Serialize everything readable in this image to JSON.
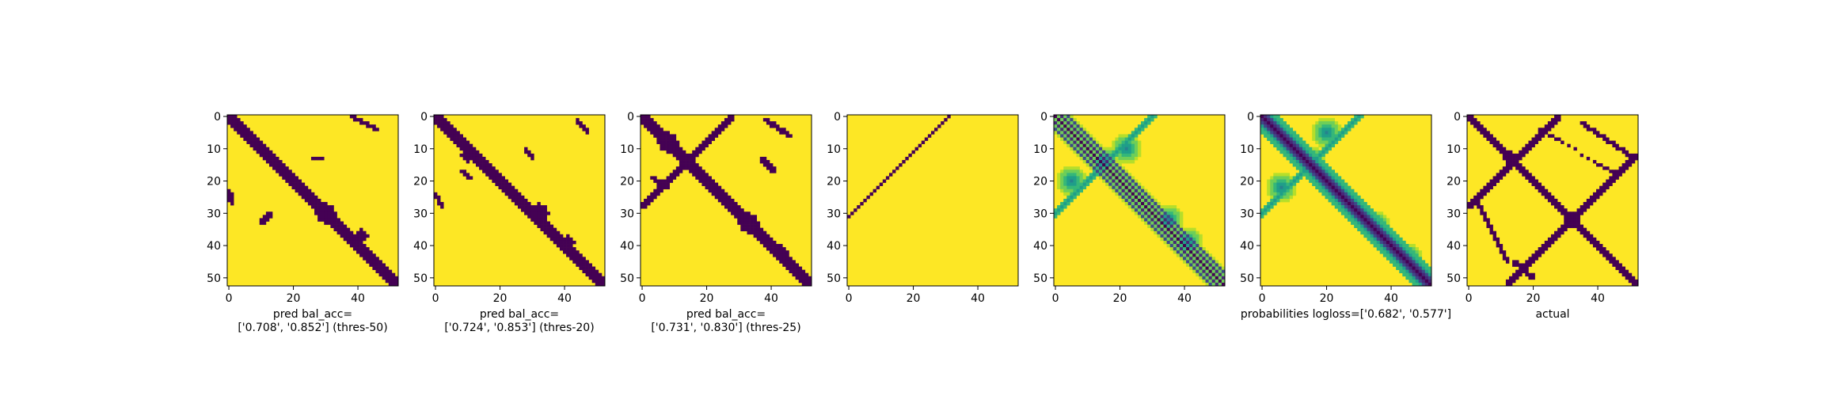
{
  "figure": {
    "colors": {
      "low": "#440154",
      "high": "#fde725",
      "viridis": [
        "#440154",
        "#482878",
        "#3e4989",
        "#31688e",
        "#26828e",
        "#1f9e89",
        "#35b779",
        "#6ece58",
        "#b5de2b",
        "#fde725"
      ]
    },
    "axis": {
      "x_ticks": [
        0,
        20,
        40
      ],
      "y_ticks": [
        0,
        10,
        20,
        30,
        40,
        50
      ],
      "size": 53
    }
  },
  "chart_data": [
    {
      "type": "heatmap",
      "title": "",
      "xlabel": "pred bal_acc=\n['0.708', '0.852'] (thres-50)",
      "ylabel": "",
      "xlim": [
        0,
        52
      ],
      "ylim": [
        52,
        0
      ],
      "values": "binary 53x53 contact map: thick dark band along main diagonal (half-width ~2, widening to a blob near 28-33), short anti-diagonal streak at rows 3-6 cols 48-52, small specks near (1,37), (13,27), (23-28,0-1), (31,12)",
      "band_width": 2,
      "blobs": [
        [
          30,
          30,
          3
        ],
        [
          37,
          41,
          2
        ]
      ],
      "segments": [
        [
          0,
          38,
          4,
          46,
          1
        ],
        [
          13,
          26,
          13,
          29,
          1
        ],
        [
          23,
          0,
          27,
          1,
          1
        ],
        [
          30,
          13,
          33,
          10,
          1
        ]
      ]
    },
    {
      "type": "heatmap",
      "title": "",
      "xlabel": "pred bal_acc=\n['0.724', '0.853'] (thres-20)",
      "ylabel": "",
      "xlim": [
        0,
        52
      ],
      "ylim": [
        52,
        0
      ],
      "values": "binary 53x53 contact map: thick dark main-diagonal band with blob near 30-34, anti-diagonal spur near rows 14-18 cols 20-27, small patches near (3,45), (11,28), (26-28,1)",
      "band_width": 2,
      "blobs": [
        [
          30,
          32,
          3
        ],
        [
          39,
          41,
          2
        ],
        [
          12,
          10,
          2
        ]
      ],
      "segments": [
        [
          1,
          44,
          5,
          47,
          1
        ],
        [
          10,
          28,
          13,
          30,
          1
        ],
        [
          24,
          0,
          28,
          2,
          1
        ],
        [
          17,
          8,
          19,
          11,
          1
        ]
      ]
    },
    {
      "type": "heatmap",
      "title": "",
      "xlabel": "pred bal_acc=\n['0.731', '0.830'] (thres-25)",
      "ylabel": "",
      "xlim": [
        0,
        52
      ],
      "ylim": [
        52,
        0
      ],
      "values": "binary 53x53 contact map: thick dark main-diagonal band, prominent anti-diagonal from (0,28) to (28,0) crossing near (13,13), cluster near (2-10,5-12), blob near 32-36, scattered dots",
      "band_width": 2,
      "blobs": [
        [
          8,
          8,
          3
        ],
        [
          33,
          33,
          3
        ],
        [
          14,
          14,
          2
        ],
        [
          42,
          43,
          2
        ]
      ],
      "segments": [
        [
          0,
          28,
          28,
          0,
          1
        ],
        [
          1,
          38,
          6,
          46,
          1
        ],
        [
          19,
          3,
          22,
          8,
          1
        ],
        [
          13,
          37,
          17,
          41,
          1
        ]
      ]
    },
    {
      "type": "heatmap",
      "title": "",
      "xlabel": "",
      "ylabel": "",
      "xlim": [
        0,
        52
      ],
      "ylim": [
        52,
        0
      ],
      "values": "binary 53x53 map: nearly all yellow, single thin dotted anti-diagonal line from (0,31) to (31,0)",
      "band_width": 0,
      "blobs": [],
      "segments": [
        [
          0,
          31,
          31,
          0,
          0
        ]
      ]
    },
    {
      "type": "heatmap",
      "title": "",
      "xlabel": "",
      "ylabel": "",
      "xlim": [
        0,
        52
      ],
      "ylim": [
        52,
        0
      ],
      "values": "continuous viridis 53x53 map: bright yellow background, main diagonal pattern of parallel striped bands (offsets 0, ±2, ±4) fading cyan/blue, anti-diagonal greenish streak (0,30)-(30,0), green blotches near (15,15), (30,35), (40,40)",
      "continuous": true,
      "stripes": true,
      "blobs": [
        [
          14,
          15,
          3
        ],
        [
          32,
          35,
          3
        ],
        [
          39,
          41,
          3
        ],
        [
          20,
          5,
          3
        ],
        [
          10,
          22,
          3
        ]
      ]
    },
    {
      "type": "heatmap",
      "title": "",
      "xlabel": "probabilities logloss=['0.682', '0.577']",
      "ylabel": "",
      "xlim": [
        0,
        52
      ],
      "ylim": [
        52,
        0
      ],
      "values": "continuous viridis 53x53 map: yellow background, thick dark-purple main diagonal band fading into blue/green, anti-diagonal green streak (0,30)-(30,0), green patches near (15,15), (35,35), (45,45)",
      "continuous": true,
      "stripes": false,
      "blobs": [
        [
          14,
          15,
          3
        ],
        [
          34,
          35,
          3
        ],
        [
          44,
          45,
          3
        ],
        [
          5,
          20,
          3
        ],
        [
          22,
          6,
          3
        ]
      ]
    },
    {
      "type": "heatmap",
      "title": "",
      "xlabel": "actual",
      "ylabel": "",
      "xlim": [
        0,
        52
      ],
      "ylim": [
        52,
        0
      ],
      "values": "binary 53x53 contact map: two crossing dark bands forming an X — main diagonal and anti-diagonal (0,29)-(29,0), second anti-diagonal (12,52)-(52,12), crossings near (13,13) and (32,32), plus side arcs",
      "band_width": 1,
      "blobs": [
        [
          13,
          13,
          2
        ],
        [
          32,
          32,
          2
        ]
      ],
      "segments": [
        [
          0,
          28,
          28,
          0,
          1
        ],
        [
          12,
          52,
          52,
          12,
          1
        ],
        [
          25,
          2,
          45,
          12,
          1
        ],
        [
          2,
          35,
          12,
          50,
          1
        ],
        [
          45,
          14,
          50,
          20,
          1
        ],
        [
          4,
          22,
          18,
          46,
          0
        ]
      ]
    }
  ]
}
